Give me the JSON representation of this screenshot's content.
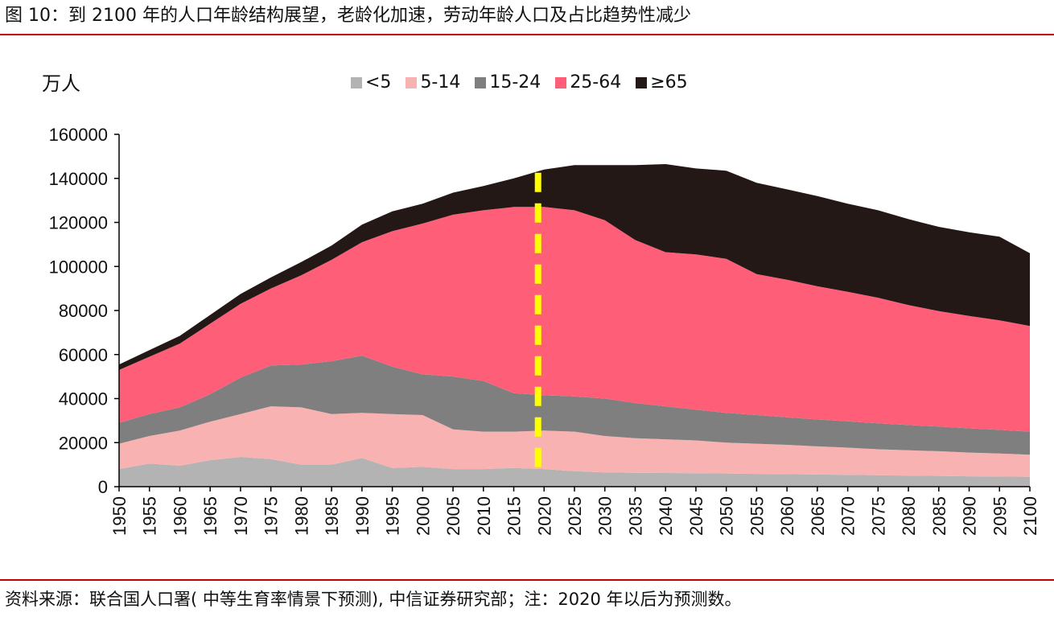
{
  "figure_title": "图 10：到 2100 年的人口年龄结构展望，老龄化加速，劳动年龄人口及占比趋势性减少",
  "source_note": "资料来源：联合国人口署( 中等生育率情景下预测), 中信证券研究部；注：2020 年以后为预测数。",
  "chart_data": {
    "type": "area",
    "stacked": true,
    "ylabel": "万人",
    "ylim": [
      0,
      160000
    ],
    "yticks": [
      0,
      20000,
      40000,
      60000,
      80000,
      100000,
      120000,
      140000,
      160000
    ],
    "x": [
      1950,
      1955,
      1960,
      1965,
      1970,
      1975,
      1980,
      1985,
      1990,
      1995,
      2000,
      2005,
      2010,
      2015,
      2020,
      2025,
      2030,
      2035,
      2040,
      2045,
      2050,
      2055,
      2060,
      2065,
      2070,
      2075,
      2080,
      2085,
      2090,
      2095,
      2100
    ],
    "legend_position": "top",
    "grid": false,
    "series": [
      {
        "name": "<5",
        "color": "#b3b3b3",
        "values": [
          8000,
          10500,
          9500,
          12000,
          13500,
          12500,
          10000,
          10000,
          13000,
          8500,
          9000,
          8000,
          8000,
          8500,
          8000,
          7000,
          6500,
          6300,
          6200,
          6100,
          6000,
          5800,
          5700,
          5500,
          5400,
          5200,
          5000,
          4900,
          4700,
          4600,
          4500
        ]
      },
      {
        "name": "5-14",
        "color": "#f8b2b2",
        "values": [
          11500,
          12500,
          16000,
          17500,
          19500,
          24000,
          26000,
          23000,
          20500,
          24500,
          23500,
          18000,
          17000,
          16500,
          17500,
          18000,
          16500,
          15700,
          15300,
          14900,
          14000,
          13700,
          13300,
          12800,
          12300,
          11800,
          11500,
          11200,
          10800,
          10500,
          10000
        ]
      },
      {
        "name": "15-24",
        "color": "#7f7f7f",
        "values": [
          9500,
          10000,
          10500,
          12500,
          16500,
          18500,
          19500,
          24000,
          26000,
          21500,
          18500,
          24000,
          23000,
          17500,
          16000,
          16000,
          17000,
          16000,
          15000,
          14000,
          13500,
          13000,
          12500,
          12200,
          12000,
          11800,
          11500,
          11200,
          11000,
          10700,
          10500
        ]
      },
      {
        "name": "25-64",
        "color": "#ff5e78",
        "values": [
          24000,
          26000,
          29000,
          32000,
          33500,
          35000,
          40500,
          46000,
          51500,
          61500,
          68500,
          73500,
          77500,
          84500,
          85500,
          84500,
          81000,
          74000,
          70000,
          70500,
          70000,
          64000,
          62500,
          60500,
          58800,
          57000,
          54500,
          52400,
          51000,
          49700,
          48000
        ]
      },
      {
        "name": "≥65",
        "color": "#231815",
        "values": [
          2500,
          3000,
          3500,
          4000,
          4500,
          5000,
          6000,
          6500,
          8000,
          9000,
          9000,
          10000,
          11000,
          13000,
          17000,
          20500,
          25000,
          34000,
          40000,
          39000,
          40000,
          41500,
          41000,
          41000,
          40000,
          39700,
          39000,
          38300,
          38000,
          38000,
          33000
        ]
      }
    ],
    "annotation": {
      "type": "vertical-dashed-line",
      "x": 2019,
      "color": "#ffff00"
    }
  }
}
